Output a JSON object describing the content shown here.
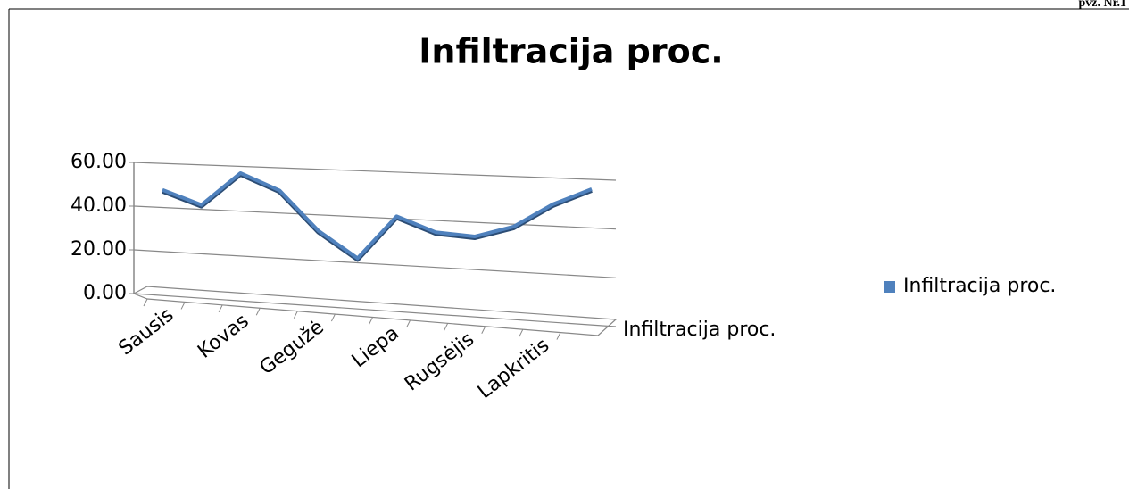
{
  "header": {
    "label": "pvz. Nr.1"
  },
  "chart_data": {
    "type": "line",
    "title": "Infiltracija proc.",
    "categories": [
      "Sausis",
      null,
      "Kovas",
      null,
      "Gegužė",
      null,
      "Liepa",
      null,
      "Rugsėjis",
      null,
      "Lapkritis",
      null
    ],
    "series": [
      {
        "name": "Infiltracija proc.",
        "color": "#4f81bd",
        "values": [
          48,
          42,
          57,
          50,
          33,
          22,
          41,
          35,
          34,
          39,
          49,
          56
        ]
      }
    ],
    "ylim": [
      0,
      60
    ],
    "yticks": [
      {
        "value": 0,
        "label": "0.00"
      },
      {
        "value": 20,
        "label": "20.00"
      },
      {
        "value": 40,
        "label": "40.00"
      },
      {
        "value": 60,
        "label": "60.00"
      }
    ],
    "depth_axis_label": "Infiltracija proc.",
    "grid": true,
    "legend": "right"
  }
}
